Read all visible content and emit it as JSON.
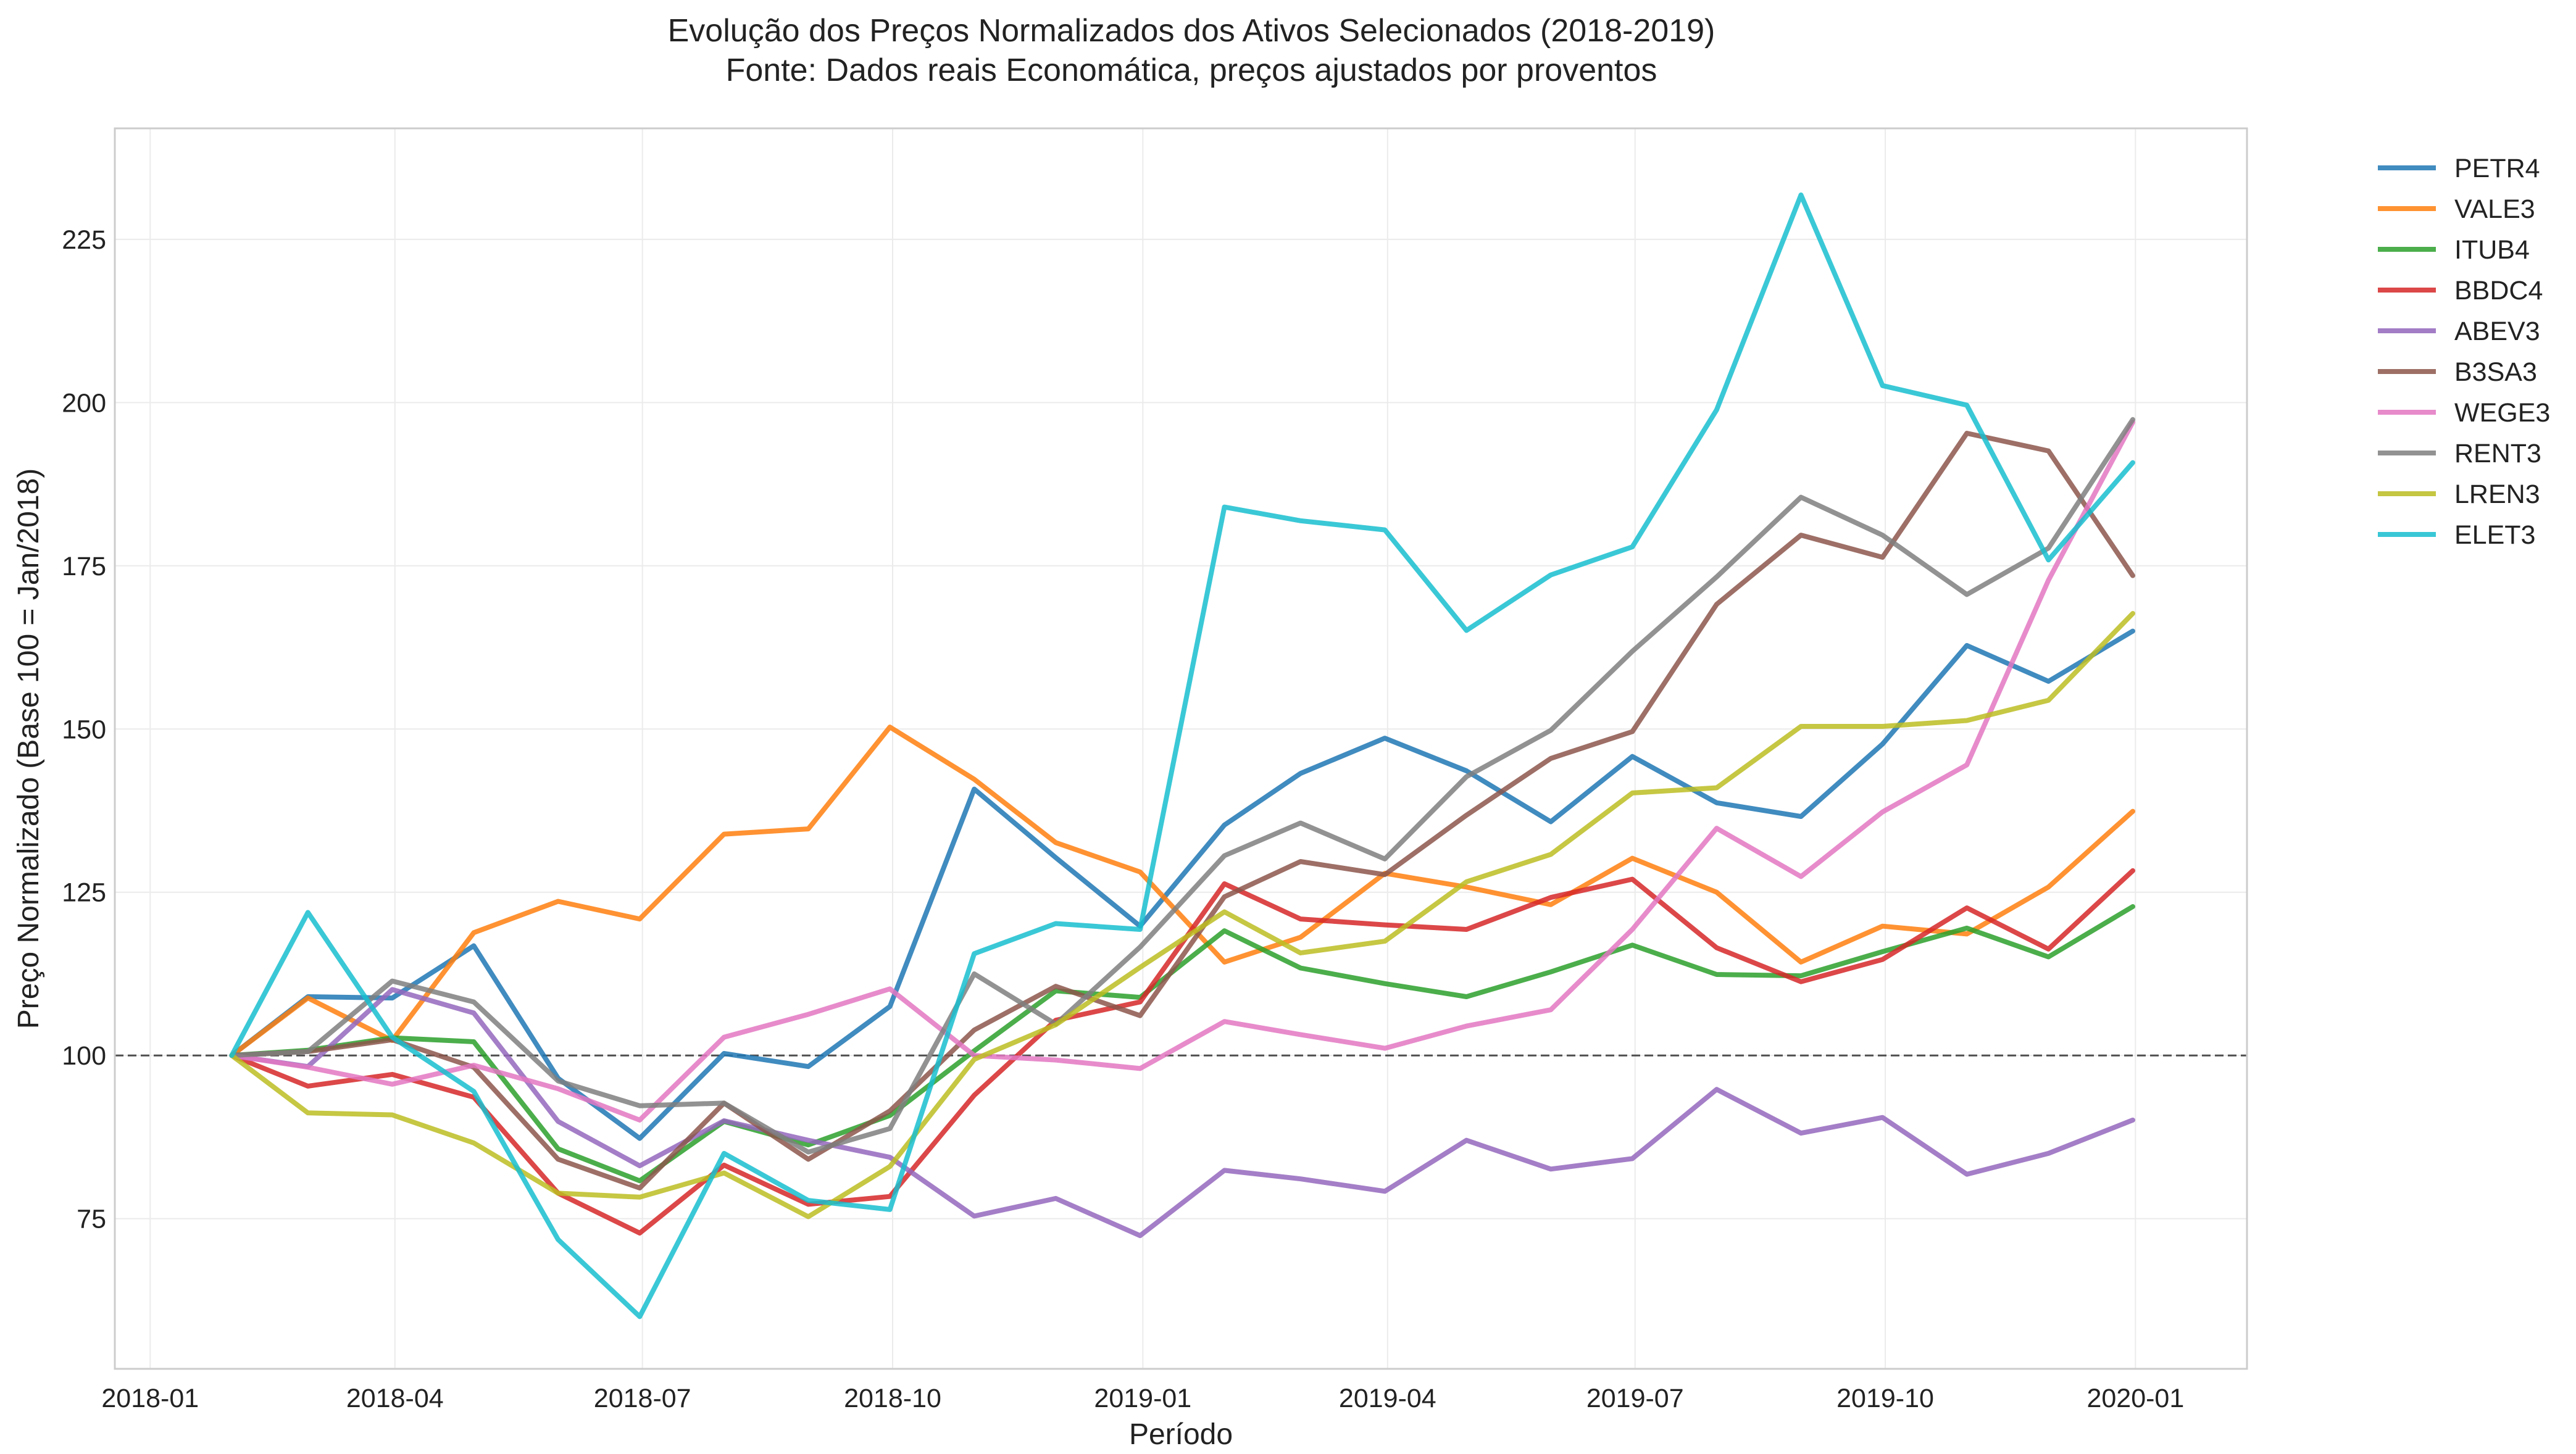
{
  "chart_data": {
    "type": "line",
    "title": "Evolução dos Preços Normalizados dos Ativos Selecionados (2018-2019)",
    "subtitle": "Fonte: Dados reais Economática, preços ajustados por proventos",
    "xlabel": "Período",
    "ylabel": "Preço Normalizado (Base 100 = Jan/2018)",
    "xlim": [
      "2017-12-19",
      "2020-02-11"
    ],
    "ylim": [
      52,
      242
    ],
    "x_ticks": [
      "2018-01",
      "2018-04",
      "2018-07",
      "2018-10",
      "2019-01",
      "2019-04",
      "2019-07",
      "2019-10",
      "2020-01"
    ],
    "y_ticks": [
      75,
      100,
      125,
      150,
      175,
      200,
      225
    ],
    "reference_line": {
      "y": 100,
      "style": "dashed"
    },
    "grid": true,
    "legend_position": "outside-right",
    "x": [
      "2018-01-31",
      "2018-02-28",
      "2018-03-31",
      "2018-04-30",
      "2018-05-31",
      "2018-06-30",
      "2018-07-31",
      "2018-08-31",
      "2018-09-30",
      "2018-10-31",
      "2018-11-30",
      "2018-12-31",
      "2019-01-31",
      "2019-02-28",
      "2019-03-31",
      "2019-04-30",
      "2019-05-31",
      "2019-06-30",
      "2019-07-31",
      "2019-08-31",
      "2019-09-30",
      "2019-10-31",
      "2019-11-30",
      "2019-12-31"
    ],
    "series": [
      {
        "name": "PETR4",
        "color": "#1f77b4",
        "values": [
          100,
          109,
          108.8,
          116.8,
          96.5,
          87.3,
          100.3,
          98.3,
          107.5,
          140.8,
          130.3,
          119.8,
          135.3,
          143.2,
          148.6,
          143.6,
          135.8,
          145.8,
          138.7,
          136.6,
          147.7,
          162.8,
          157.3,
          165
        ]
      },
      {
        "name": "VALE3",
        "color": "#ff7f0e",
        "values": [
          100,
          108.8,
          102.3,
          118.8,
          123.6,
          120.9,
          133.9,
          134.7,
          150.3,
          142.3,
          132.6,
          128.1,
          114.3,
          118.1,
          127.9,
          125.8,
          123.1,
          130.2,
          125,
          114.3,
          119.8,
          118.6,
          125.8,
          137.4
        ]
      },
      {
        "name": "ITUB4",
        "color": "#2ca02c",
        "values": [
          100,
          100.8,
          102.7,
          102.1,
          85.7,
          80.8,
          89.9,
          86.3,
          90.8,
          100.7,
          109.9,
          108.9,
          119.1,
          113.4,
          111,
          109,
          112.8,
          116.9,
          112.4,
          112.2,
          115.9,
          119.5,
          115.1,
          122.8
        ]
      },
      {
        "name": "BBDC4",
        "color": "#d62728",
        "values": [
          100,
          95.3,
          97.1,
          93.6,
          78.9,
          72.8,
          83.2,
          77.2,
          78.4,
          93.9,
          105.4,
          108.2,
          126.3,
          120.9,
          120,
          119.3,
          124.2,
          127,
          116.5,
          111.3,
          114.7,
          122.6,
          116.3,
          128.3
        ]
      },
      {
        "name": "ABEV3",
        "color": "#9467bd",
        "values": [
          100,
          98.3,
          110.1,
          106.5,
          89.9,
          83.1,
          90,
          87,
          84.4,
          75.4,
          78.1,
          72.4,
          82.4,
          81.1,
          79.2,
          87,
          82.6,
          84.2,
          94.8,
          88.1,
          90.5,
          81.8,
          85,
          90.1
        ]
      },
      {
        "name": "B3SA3",
        "color": "#8c564b",
        "values": [
          100,
          100.6,
          102.4,
          98.2,
          84.1,
          79.7,
          92.7,
          84.1,
          91.5,
          103.9,
          110.6,
          106.1,
          124.3,
          129.7,
          127.7,
          136.8,
          145.5,
          149.6,
          169.1,
          179.7,
          176.3,
          195.3,
          192.6,
          173.5
        ]
      },
      {
        "name": "WEGE3",
        "color": "#e377c2",
        "values": [
          100,
          98.2,
          95.6,
          98.5,
          94.9,
          90.1,
          102.8,
          106.3,
          110.2,
          100,
          99.3,
          98,
          105.2,
          103.2,
          101.1,
          104.5,
          107,
          119.3,
          134.8,
          127.4,
          137.3,
          144.5,
          172.8,
          197
        ]
      },
      {
        "name": "RENT3",
        "color": "#7f7f7f",
        "values": [
          100,
          100.6,
          111.4,
          108.2,
          96.1,
          92.3,
          92.7,
          85.2,
          88.8,
          112.5,
          104.8,
          116.6,
          130.6,
          135.6,
          130.1,
          142.7,
          149.8,
          161.9,
          173.3,
          185.5,
          179.7,
          170.6,
          177.7,
          197.4
        ]
      },
      {
        "name": "LREN3",
        "color": "#bcbd22",
        "values": [
          100,
          91.2,
          90.9,
          86.6,
          78.9,
          78.3,
          82,
          75.3,
          83,
          99.4,
          104.7,
          113.5,
          122,
          115.7,
          117.5,
          126.6,
          130.8,
          140.2,
          141,
          150.4,
          150.4,
          151.3,
          154.4,
          167.7
        ]
      },
      {
        "name": "ELET3",
        "color": "#17becf",
        "values": [
          100,
          121.9,
          102.8,
          94.5,
          71.8,
          60,
          85,
          77.8,
          76.4,
          115.6,
          120.2,
          119.3,
          184,
          181.9,
          180.5,
          165.1,
          173.6,
          177.9,
          198.9,
          231.8,
          202.6,
          199.6,
          175.9,
          190.8
        ]
      }
    ]
  }
}
